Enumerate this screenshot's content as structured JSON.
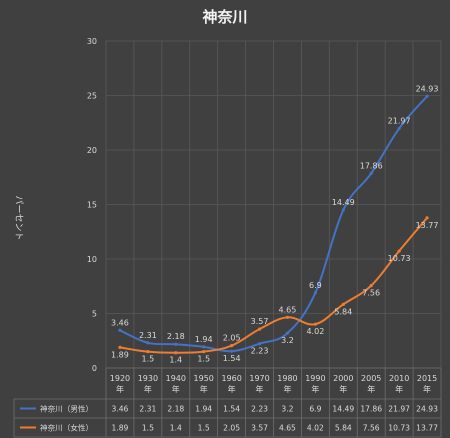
{
  "chart_data": {
    "type": "line",
    "title": "神奈川",
    "ylabel": "パーセント",
    "ylim": [
      0,
      30
    ],
    "yticks": [
      0,
      5,
      10,
      15,
      20,
      25,
      30
    ],
    "grid": true,
    "legend": "table-bottom",
    "categories": [
      "1920年",
      "1930年",
      "1940年",
      "1950年",
      "1960年",
      "1970年",
      "1980年",
      "1990年",
      "2000年",
      "2005年",
      "2010年",
      "2015年"
    ],
    "series": [
      {
        "name": "神奈川（男性）",
        "color": "#4472c4",
        "values": [
          3.46,
          2.31,
          2.18,
          1.94,
          1.54,
          2.23,
          3.2,
          6.9,
          14.49,
          17.86,
          21.97,
          24.93
        ]
      },
      {
        "name": "神奈川（女性）",
        "color": "#ed7d31",
        "values": [
          1.89,
          1.5,
          1.4,
          1.5,
          2.05,
          3.57,
          4.65,
          4.02,
          5.84,
          7.56,
          10.73,
          13.77
        ]
      }
    ]
  }
}
